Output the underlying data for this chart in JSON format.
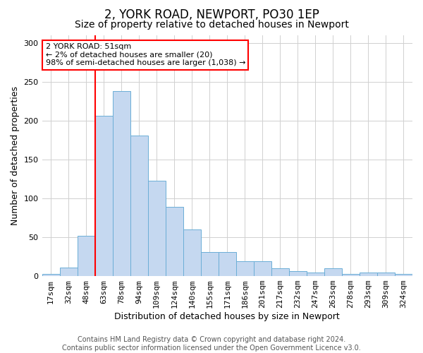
{
  "title": "2, YORK ROAD, NEWPORT, PO30 1EP",
  "subtitle": "Size of property relative to detached houses in Newport",
  "xlabel": "Distribution of detached houses by size in Newport",
  "ylabel": "Number of detached properties",
  "categories": [
    "17sqm",
    "32sqm",
    "48sqm",
    "63sqm",
    "78sqm",
    "94sqm",
    "109sqm",
    "124sqm",
    "140sqm",
    "155sqm",
    "171sqm",
    "186sqm",
    "201sqm",
    "217sqm",
    "232sqm",
    "247sqm",
    "263sqm",
    "278sqm",
    "293sqm",
    "309sqm",
    "324sqm"
  ],
  "values": [
    3,
    11,
    52,
    206,
    238,
    181,
    123,
    89,
    60,
    31,
    31,
    19,
    19,
    10,
    6,
    5,
    10,
    3,
    5,
    5,
    3
  ],
  "bar_color": "#c5d8f0",
  "bar_edge_color": "#6baed6",
  "vline_color": "red",
  "vline_x": 2.5,
  "annotation_text": "2 YORK ROAD: 51sqm\n← 2% of detached houses are smaller (20)\n98% of semi-detached houses are larger (1,038) →",
  "annotation_box_color": "white",
  "annotation_box_edge_color": "red",
  "ylim": [
    0,
    310
  ],
  "yticks": [
    0,
    50,
    100,
    150,
    200,
    250,
    300
  ],
  "grid_color": "#d0d0d0",
  "background_color": "white",
  "footer_line1": "Contains HM Land Registry data © Crown copyright and database right 2024.",
  "footer_line2": "Contains public sector information licensed under the Open Government Licence v3.0.",
  "title_fontsize": 12,
  "subtitle_fontsize": 10,
  "xlabel_fontsize": 9,
  "ylabel_fontsize": 9,
  "footer_fontsize": 7,
  "tick_fontsize": 8,
  "annot_fontsize": 8
}
